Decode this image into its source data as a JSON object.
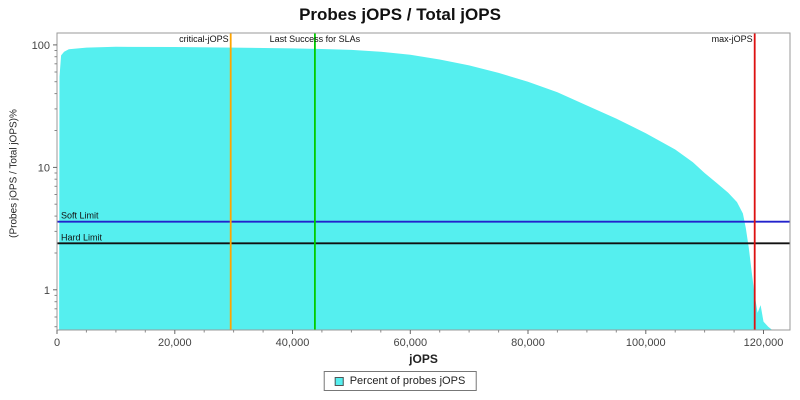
{
  "chart_data": {
    "type": "area",
    "title": "Probes jOPS / Total jOPS",
    "xlabel": "jOPS",
    "ylabel": "(Probes jOPS / Total jOPS)%",
    "x_axis": {
      "min": 0,
      "max": 124500,
      "minor_step": 5000,
      "major_ticks": [
        {
          "v": 0,
          "label": "0"
        },
        {
          "v": 20000,
          "label": "20,000"
        },
        {
          "v": 40000,
          "label": "40,000"
        },
        {
          "v": 60000,
          "label": "60,000"
        },
        {
          "v": 80000,
          "label": "80,000"
        },
        {
          "v": 100000,
          "label": "100,000"
        },
        {
          "v": 120000,
          "label": "120,000"
        }
      ]
    },
    "y_axis": {
      "scale": "log",
      "min": 0.47,
      "max": 125,
      "major_ticks": [
        {
          "v": 1,
          "label": "1"
        },
        {
          "v": 10,
          "label": "10"
        },
        {
          "v": 100,
          "label": "100"
        }
      ]
    },
    "series": {
      "name": "Percent of probes jOPS",
      "color": "#55EFEF",
      "points": [
        [
          350,
          0.5
        ],
        [
          420,
          55
        ],
        [
          700,
          82
        ],
        [
          1200,
          88
        ],
        [
          2000,
          92
        ],
        [
          5000,
          95
        ],
        [
          10000,
          96.5
        ],
        [
          20000,
          96
        ],
        [
          30000,
          95
        ],
        [
          40000,
          93.5
        ],
        [
          45000,
          92.5
        ],
        [
          50000,
          91
        ],
        [
          55000,
          88
        ],
        [
          60000,
          83
        ],
        [
          65000,
          76
        ],
        [
          70000,
          68
        ],
        [
          75000,
          59
        ],
        [
          80000,
          50
        ],
        [
          85000,
          41
        ],
        [
          90000,
          32
        ],
        [
          95000,
          25
        ],
        [
          100000,
          19
        ],
        [
          105000,
          14
        ],
        [
          108000,
          11
        ],
        [
          110000,
          9
        ],
        [
          112000,
          7.5
        ],
        [
          114000,
          6.2
        ],
        [
          115500,
          5.2
        ],
        [
          116500,
          4.2
        ],
        [
          117000,
          3.2
        ],
        [
          117500,
          2.2
        ],
        [
          118000,
          1.4
        ],
        [
          118500,
          0.9
        ],
        [
          119000,
          0.65
        ],
        [
          119500,
          0.75
        ],
        [
          120000,
          0.55
        ],
        [
          120800,
          0.5
        ],
        [
          121500,
          0.47
        ]
      ]
    },
    "markers": {
      "vertical": [
        {
          "name": "critical-jops",
          "label": "critical-jOPS",
          "x": 29500,
          "color": "#FFA500",
          "label_align": "end"
        },
        {
          "name": "last-success",
          "label": "Last Success for SLAs",
          "x": 43800,
          "color": "#00CC00",
          "label_align": "middle"
        },
        {
          "name": "max-jops",
          "label": "max-jOPS",
          "x": 118500,
          "color": "#DD1111",
          "label_align": "end"
        }
      ],
      "horizontal": [
        {
          "name": "soft-limit",
          "label": "Soft Limit",
          "y": 3.6,
          "color": "#2222CC"
        },
        {
          "name": "hard-limit",
          "label": "Hard Limit",
          "y": 2.4,
          "color": "#111111"
        }
      ]
    },
    "legend": {
      "items": [
        {
          "label": "Percent of probes jOPS",
          "color": "#55EFEF"
        }
      ]
    }
  }
}
